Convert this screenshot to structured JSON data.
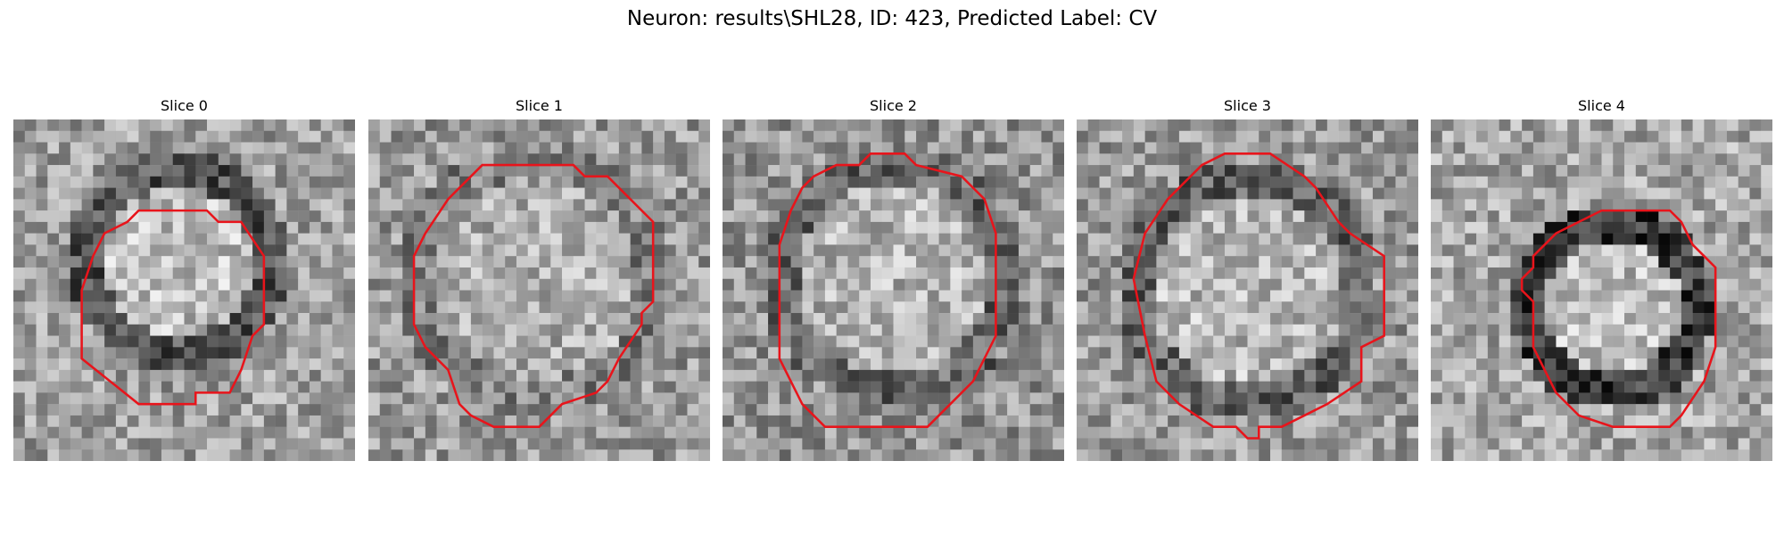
{
  "figure": {
    "title": "Neuron: results\\SHL28, ID: 423, Predicted Label: CV"
  },
  "grid_size": 30,
  "contour_color": "#e8141b",
  "colormap": "grayscale",
  "panels": [
    {
      "title": "Slice 0",
      "blob": {
        "cx": 14.5,
        "cy": 12.5,
        "r": 8.0,
        "inner": 0.74,
        "ring": 0.32,
        "bg": 0.62
      },
      "contour": [
        [
          11,
          8
        ],
        [
          17,
          8
        ],
        [
          18,
          9
        ],
        [
          20,
          9
        ],
        [
          22,
          12
        ],
        [
          22,
          18
        ],
        [
          21,
          19
        ],
        [
          20,
          22
        ],
        [
          19,
          24
        ],
        [
          16,
          24
        ],
        [
          16,
          25
        ],
        [
          11,
          25
        ],
        [
          6,
          21
        ],
        [
          6,
          18
        ],
        [
          6,
          16
        ],
        [
          6,
          15
        ],
        [
          7,
          12
        ],
        [
          8,
          10
        ],
        [
          10,
          9
        ]
      ]
    },
    {
      "title": "Slice 1",
      "blob": {
        "cx": 14.5,
        "cy": 14.0,
        "r": 10.5,
        "inner": 0.68,
        "ring": 0.5,
        "bg": 0.6
      },
      "contour": [
        [
          11,
          4
        ],
        [
          18,
          4
        ],
        [
          19,
          5
        ],
        [
          21,
          5
        ],
        [
          25,
          9
        ],
        [
          25,
          16
        ],
        [
          24,
          17
        ],
        [
          24,
          18
        ],
        [
          22,
          21
        ],
        [
          21,
          23
        ],
        [
          20,
          24
        ],
        [
          17,
          25
        ],
        [
          15,
          27
        ],
        [
          11,
          27
        ],
        [
          9,
          26
        ],
        [
          8,
          25
        ],
        [
          7,
          22
        ],
        [
          5,
          20
        ],
        [
          4,
          18
        ],
        [
          4,
          12
        ],
        [
          5,
          10
        ],
        [
          7,
          7
        ],
        [
          10,
          4
        ]
      ]
    },
    {
      "title": "Slice 2",
      "blob": {
        "cx": 15.0,
        "cy": 14.0,
        "r": 10.0,
        "inner": 0.7,
        "ring": 0.4,
        "bg": 0.58
      },
      "contour": [
        [
          13,
          3
        ],
        [
          16,
          3
        ],
        [
          17,
          4
        ],
        [
          21,
          5
        ],
        [
          22,
          6
        ],
        [
          23,
          7
        ],
        [
          24,
          10
        ],
        [
          24,
          19
        ],
        [
          23,
          21
        ],
        [
          22,
          23
        ],
        [
          20,
          25
        ],
        [
          18,
          27
        ],
        [
          9,
          27
        ],
        [
          7,
          25
        ],
        [
          6,
          23
        ],
        [
          5,
          21
        ],
        [
          5,
          11
        ],
        [
          6,
          8
        ],
        [
          7,
          6
        ],
        [
          8,
          5
        ],
        [
          10,
          4
        ],
        [
          12,
          4
        ]
      ]
    },
    {
      "title": "Slice 3",
      "blob": {
        "cx": 15.0,
        "cy": 15.0,
        "r": 10.0,
        "inner": 0.72,
        "ring": 0.38,
        "bg": 0.6
      },
      "contour": [
        [
          13,
          3
        ],
        [
          17,
          3
        ],
        [
          20,
          5
        ],
        [
          21,
          6
        ],
        [
          23,
          9
        ],
        [
          24,
          10
        ],
        [
          27,
          12
        ],
        [
          27,
          19
        ],
        [
          25,
          20
        ],
        [
          25,
          23
        ],
        [
          22,
          25
        ],
        [
          20,
          26
        ],
        [
          18,
          27
        ],
        [
          16,
          27
        ],
        [
          16,
          28
        ],
        [
          15,
          28
        ],
        [
          14,
          27
        ],
        [
          12,
          27
        ],
        [
          9,
          25
        ],
        [
          7,
          23
        ],
        [
          6,
          19
        ],
        [
          5,
          14
        ],
        [
          6,
          10
        ],
        [
          8,
          7
        ],
        [
          10,
          5
        ],
        [
          11,
          4
        ]
      ]
    },
    {
      "title": "Slice 4",
      "blob": {
        "cx": 16.0,
        "cy": 16.5,
        "r": 7.5,
        "inner": 0.74,
        "ring": 0.22,
        "bg": 0.65
      },
      "contour": [
        [
          15,
          8
        ],
        [
          21,
          8
        ],
        [
          22,
          9
        ],
        [
          23,
          11
        ],
        [
          24,
          12
        ],
        [
          25,
          13
        ],
        [
          25,
          20
        ],
        [
          24,
          23
        ],
        [
          22,
          26
        ],
        [
          21,
          27
        ],
        [
          16,
          27
        ],
        [
          13,
          26
        ],
        [
          11,
          24
        ],
        [
          10,
          22
        ],
        [
          9,
          20
        ],
        [
          9,
          16
        ],
        [
          8,
          15
        ],
        [
          8,
          14
        ],
        [
          9,
          13
        ],
        [
          9,
          12
        ],
        [
          11,
          10
        ],
        [
          13,
          9
        ]
      ]
    }
  ]
}
